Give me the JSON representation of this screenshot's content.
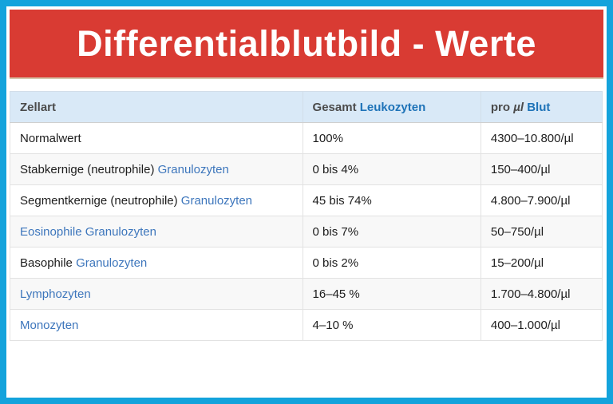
{
  "page": {
    "border_color": "#14A3DC",
    "banner": {
      "title": "Differentialblutbild - Werte",
      "bg_color": "#D93B33",
      "text_color": "#FFFFFF"
    }
  },
  "colors": {
    "table_header_bg": "#D9E9F7",
    "header_link_blue": "#1E73B8",
    "body_link_blue": "#3D76BC",
    "zebra_row_bg": "#F8F8F8",
    "body_text": "#1D1D1D",
    "header_text": "#4B4B4B"
  },
  "table": {
    "header": [
      {
        "parts": [
          {
            "t": "Zellart"
          }
        ]
      },
      {
        "parts": [
          {
            "t": "Gesamt "
          },
          {
            "t": "Leukozyten",
            "link": true
          }
        ]
      },
      {
        "parts": [
          {
            "t": "pro "
          },
          {
            "t": "µl",
            "italic": true
          },
          {
            "t": " "
          },
          {
            "t": "Blut",
            "link": true
          }
        ]
      }
    ],
    "rows": [
      {
        "cells": [
          {
            "parts": [
              {
                "t": "Normalwert"
              }
            ]
          },
          {
            "parts": [
              {
                "t": "100%"
              }
            ]
          },
          {
            "parts": [
              {
                "t": "4300–10.800/µl"
              }
            ]
          }
        ]
      },
      {
        "cells": [
          {
            "parts": [
              {
                "t": "Stabkernige (neutrophile) "
              },
              {
                "t": "Granulozyten",
                "link": true
              }
            ]
          },
          {
            "parts": [
              {
                "t": "0 bis 4%"
              }
            ]
          },
          {
            "parts": [
              {
                "t": "150–400/µl"
              }
            ]
          }
        ]
      },
      {
        "cells": [
          {
            "parts": [
              {
                "t": "Segmentkernige (neutrophile) "
              },
              {
                "t": "Granulozyten",
                "link": true
              }
            ]
          },
          {
            "parts": [
              {
                "t": "45 bis 74%"
              }
            ]
          },
          {
            "parts": [
              {
                "t": "4.800–7.900/µl"
              }
            ]
          }
        ]
      },
      {
        "cells": [
          {
            "parts": [
              {
                "t": "Eosinophile Granulozyten",
                "link": true
              }
            ]
          },
          {
            "parts": [
              {
                "t": "0 bis 7%"
              }
            ]
          },
          {
            "parts": [
              {
                "t": "50–750/µl"
              }
            ]
          }
        ]
      },
      {
        "cells": [
          {
            "parts": [
              {
                "t": "Basophile "
              },
              {
                "t": "Granulozyten",
                "link": true
              }
            ]
          },
          {
            "parts": [
              {
                "t": "0 bis 2%"
              }
            ]
          },
          {
            "parts": [
              {
                "t": "15–200/µl"
              }
            ]
          }
        ]
      },
      {
        "cells": [
          {
            "parts": [
              {
                "t": "Lymphozyten",
                "link": true
              }
            ]
          },
          {
            "parts": [
              {
                "t": "16–45 %"
              }
            ]
          },
          {
            "parts": [
              {
                "t": "1.700–4.800/µl"
              }
            ]
          }
        ]
      },
      {
        "cells": [
          {
            "parts": [
              {
                "t": "Monozyten",
                "link": true
              }
            ]
          },
          {
            "parts": [
              {
                "t": "4–10 %"
              }
            ]
          },
          {
            "parts": [
              {
                "t": "400–1.000/µl"
              }
            ]
          }
        ]
      }
    ]
  }
}
